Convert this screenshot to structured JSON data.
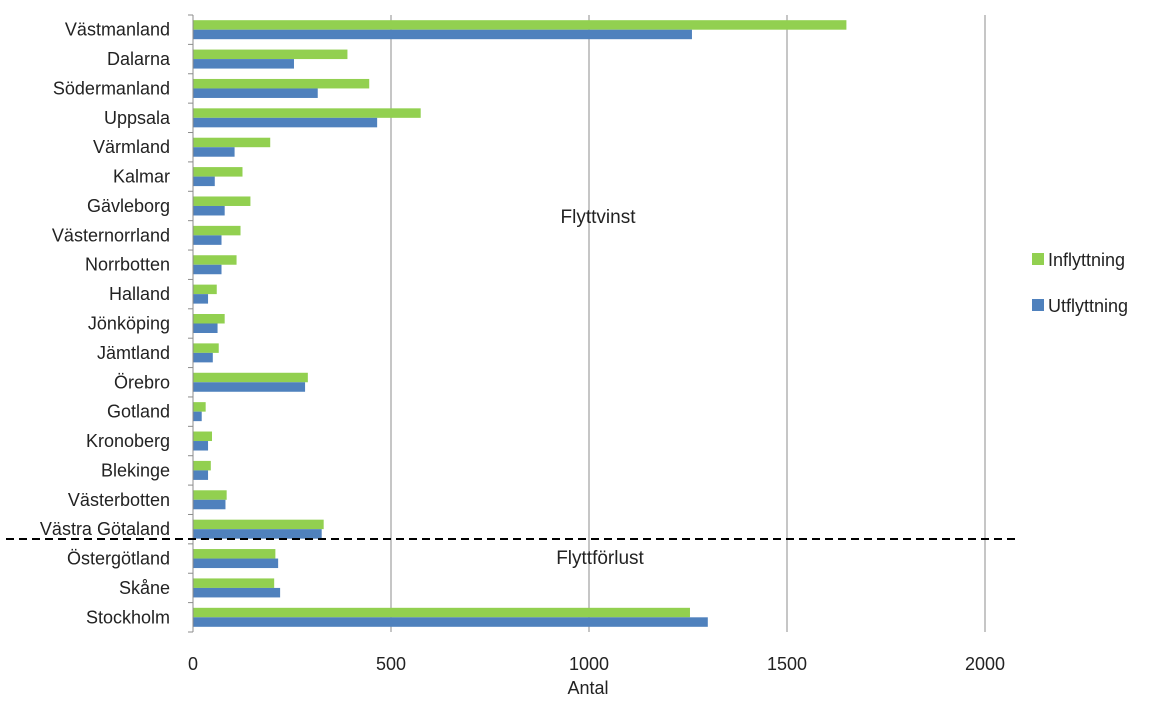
{
  "chart_data": {
    "type": "bar",
    "orientation": "horizontal",
    "title": "",
    "xlabel": "Antal",
    "ylabel": "",
    "xlim": [
      0,
      2000
    ],
    "x_ticks": [
      0,
      500,
      1000,
      1500,
      2000
    ],
    "grid": "vertical",
    "legend_position": "right",
    "categories": [
      "Västmanland",
      "Dalarna",
      "Södermanland",
      "Uppsala",
      "Värmland",
      "Kalmar",
      "Gävleborg",
      "Västernorrland",
      "Norrbotten",
      "Halland",
      "Jönköping",
      "Jämtland",
      "Örebro",
      "Gotland",
      "Kronoberg",
      "Blekinge",
      "Västerbotten",
      "Västra Götaland",
      "Östergötland",
      "Skåne",
      "Stockholm"
    ],
    "series": [
      {
        "name": "Inflyttning",
        "color": "#92D050",
        "values": [
          1650,
          390,
          445,
          575,
          195,
          125,
          145,
          120,
          110,
          60,
          80,
          65,
          290,
          32,
          48,
          45,
          85,
          330,
          208,
          205,
          1255
        ]
      },
      {
        "name": "Utflyttning",
        "color": "#4F81BD",
        "values": [
          1260,
          255,
          315,
          465,
          105,
          55,
          80,
          72,
          72,
          38,
          62,
          50,
          283,
          22,
          38,
          38,
          82,
          325,
          215,
          220,
          1300
        ]
      }
    ],
    "annotations": [
      {
        "text": "Flyttvinst"
      },
      {
        "text": "Flyttförlust"
      }
    ],
    "divider": {
      "style": "dashed",
      "between": [
        "Västra Götaland",
        "Östergötland"
      ]
    }
  }
}
